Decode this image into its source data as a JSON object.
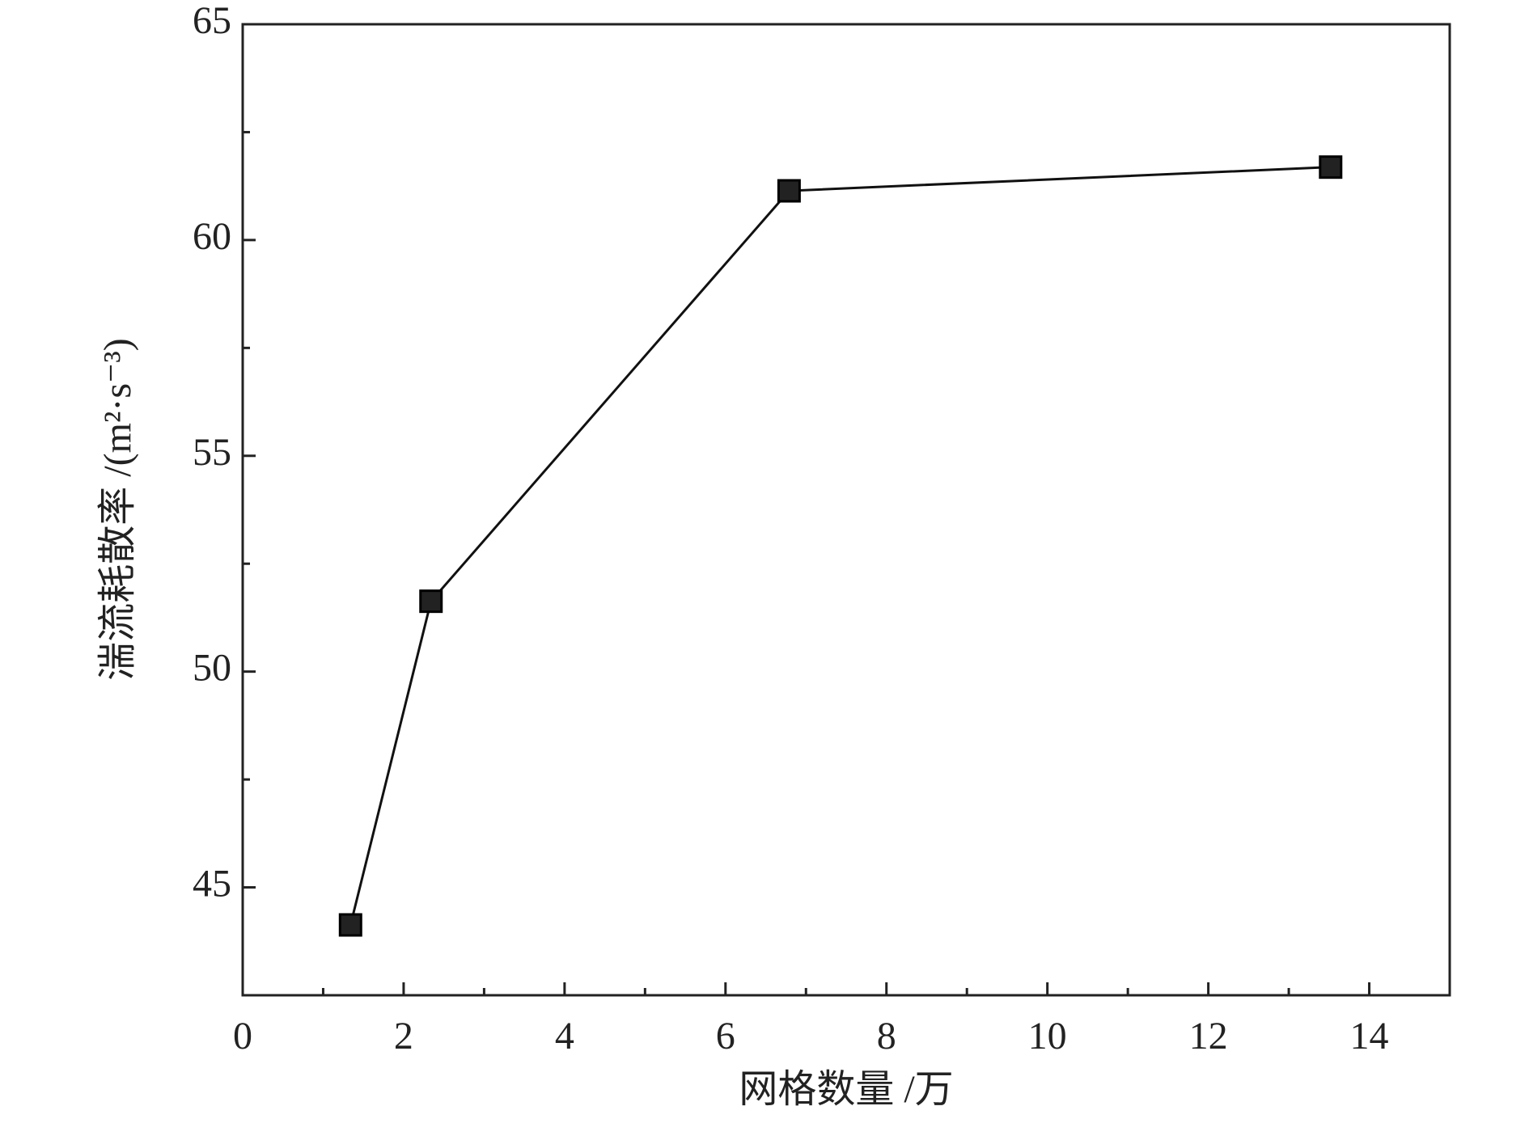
{
  "chart_data": {
    "type": "line",
    "x_label": "网格数量 /万",
    "y_label": "湍流耗散率 /(m²·s⁻³)",
    "series": [
      {
        "color": "#222222",
        "x": [
          1.34,
          2.34,
          6.79,
          13.52
        ],
        "values": [
          44.13,
          51.63,
          61.14,
          61.69
        ]
      }
    ],
    "xlim": [
      0,
      15
    ],
    "xticks": [
      0,
      2,
      4,
      6,
      8,
      10,
      12,
      14
    ],
    "xminorticks": [
      1,
      3,
      5,
      7,
      9,
      11,
      13
    ],
    "ylim": [
      42.5,
      65
    ],
    "yticks": [
      45,
      50,
      55,
      60,
      65
    ],
    "yminorticks": [
      47.5,
      52.5,
      57.5,
      62.5
    ],
    "grid": false
  }
}
